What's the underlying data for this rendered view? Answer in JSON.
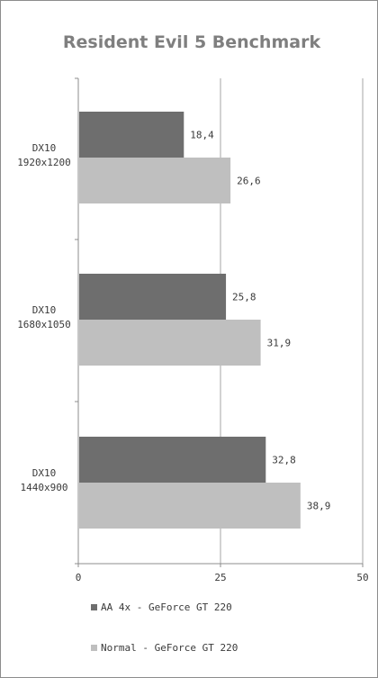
{
  "chart_data": {
    "type": "bar",
    "orientation": "horizontal",
    "title": "Resident Evil 5 Benchmark",
    "categories": [
      [
        "DX10",
        "1920x1200"
      ],
      [
        "DX10",
        "1680x1050"
      ],
      [
        "DX10",
        "1440x900"
      ]
    ],
    "series": [
      {
        "name": "AA 4x - GeForce GT 220",
        "values": [
          18.4,
          25.8,
          32.8
        ],
        "labels": [
          "18,4",
          "25,8",
          "32,8"
        ],
        "color": "#6e6e6e"
      },
      {
        "name": "Normal - GeForce GT 220",
        "values": [
          26.6,
          31.9,
          38.9
        ],
        "labels": [
          "26,6",
          "31,9",
          "38,9"
        ],
        "color": "#bfbfbf"
      }
    ],
    "xlim": [
      0,
      50
    ],
    "xticks": [
      "0",
      "25",
      "50"
    ],
    "grid": true,
    "legend_position": "bottom-left"
  }
}
